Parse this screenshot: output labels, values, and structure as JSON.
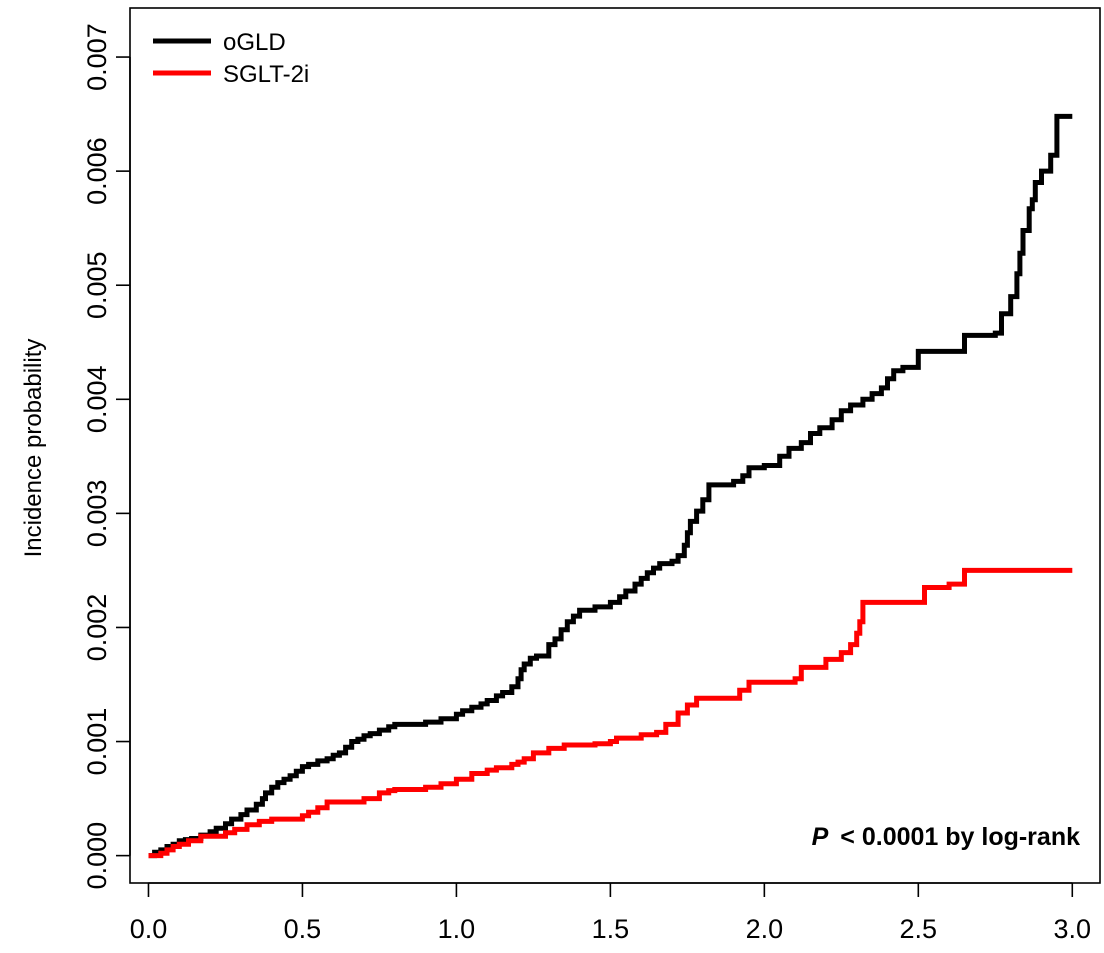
{
  "chart_data": {
    "type": "line",
    "step": true,
    "title": "",
    "xlabel": "",
    "ylabel": "Incidence probability",
    "xlim": [
      -0.06,
      3.09
    ],
    "ylim": [
      -0.00024,
      0.00743
    ],
    "x_ticks": [
      0.0,
      0.5,
      1.0,
      1.5,
      2.0,
      2.5,
      3.0
    ],
    "x_tick_labels": [
      "0.0",
      "0.5",
      "1.0",
      "1.5",
      "2.0",
      "2.5",
      "3.0"
    ],
    "y_ticks": [
      0.0,
      0.001,
      0.002,
      0.003,
      0.004,
      0.005,
      0.006,
      0.007
    ],
    "y_tick_labels": [
      "0.000",
      "0.001",
      "0.002",
      "0.003",
      "0.004",
      "0.005",
      "0.006",
      "0.007"
    ],
    "grid": false,
    "legend_position": "top-left",
    "annotation": {
      "p_symbol": "P",
      "text": "< 0.0001 by log-rank",
      "position": "bottom-right"
    },
    "series": [
      {
        "name": "oGLD",
        "color": "#000000",
        "x": [
          0.0,
          0.02,
          0.04,
          0.06,
          0.08,
          0.1,
          0.12,
          0.14,
          0.17,
          0.2,
          0.22,
          0.25,
          0.27,
          0.3,
          0.32,
          0.35,
          0.37,
          0.38,
          0.4,
          0.42,
          0.44,
          0.46,
          0.48,
          0.5,
          0.52,
          0.55,
          0.58,
          0.6,
          0.62,
          0.64,
          0.66,
          0.68,
          0.7,
          0.72,
          0.75,
          0.78,
          0.8,
          0.85,
          0.9,
          0.95,
          1.0,
          1.02,
          1.05,
          1.08,
          1.1,
          1.13,
          1.15,
          1.18,
          1.2,
          1.21,
          1.22,
          1.24,
          1.26,
          1.3,
          1.32,
          1.34,
          1.36,
          1.38,
          1.4,
          1.45,
          1.5,
          1.53,
          1.55,
          1.58,
          1.6,
          1.62,
          1.64,
          1.66,
          1.7,
          1.72,
          1.74,
          1.75,
          1.76,
          1.78,
          1.8,
          1.82,
          1.84,
          1.9,
          1.93,
          1.95,
          2.0,
          2.05,
          2.08,
          2.12,
          2.15,
          2.18,
          2.22,
          2.25,
          2.28,
          2.32,
          2.35,
          2.38,
          2.4,
          2.42,
          2.45,
          2.5,
          2.6,
          2.65,
          2.75,
          2.77,
          2.8,
          2.82,
          2.83,
          2.84,
          2.86,
          2.87,
          2.88,
          2.9,
          2.93,
          2.95,
          3.0
        ],
        "values": [
          0.0,
          3e-05,
          5e-05,
          8e-05,
          0.0001,
          0.00013,
          0.00014,
          0.00015,
          0.00018,
          0.00021,
          0.00024,
          0.00028,
          0.00032,
          0.00036,
          0.0004,
          0.00045,
          0.0005,
          0.00055,
          0.0006,
          0.00064,
          0.00067,
          0.0007,
          0.00074,
          0.00078,
          0.0008,
          0.00083,
          0.00085,
          0.00088,
          0.0009,
          0.00095,
          0.001,
          0.00102,
          0.00105,
          0.00107,
          0.0011,
          0.00113,
          0.00115,
          0.00115,
          0.00117,
          0.0012,
          0.00124,
          0.00127,
          0.0013,
          0.00133,
          0.00136,
          0.0014,
          0.00143,
          0.00148,
          0.00155,
          0.00163,
          0.00168,
          0.00173,
          0.00175,
          0.00185,
          0.0019,
          0.00198,
          0.00205,
          0.0021,
          0.00215,
          0.00218,
          0.00222,
          0.00227,
          0.00232,
          0.00238,
          0.00243,
          0.00248,
          0.00252,
          0.00256,
          0.00258,
          0.00263,
          0.00272,
          0.00283,
          0.00293,
          0.00302,
          0.00312,
          0.00325,
          0.00325,
          0.00328,
          0.00333,
          0.0034,
          0.00342,
          0.0035,
          0.00357,
          0.00362,
          0.0037,
          0.00375,
          0.00382,
          0.0039,
          0.00395,
          0.004,
          0.00405,
          0.0041,
          0.00418,
          0.00425,
          0.00428,
          0.00442,
          0.00442,
          0.00456,
          0.00458,
          0.00475,
          0.0049,
          0.0051,
          0.00528,
          0.00548,
          0.00567,
          0.00575,
          0.0059,
          0.006,
          0.00614,
          0.00648,
          0.00648
        ]
      },
      {
        "name": "SGLT-2i",
        "color": "#ff0000",
        "x": [
          0.0,
          0.04,
          0.06,
          0.08,
          0.1,
          0.13,
          0.17,
          0.25,
          0.28,
          0.32,
          0.36,
          0.4,
          0.5,
          0.52,
          0.55,
          0.58,
          0.6,
          0.7,
          0.75,
          0.78,
          0.8,
          0.9,
          0.95,
          1.0,
          1.05,
          1.1,
          1.13,
          1.18,
          1.2,
          1.22,
          1.25,
          1.3,
          1.35,
          1.45,
          1.5,
          1.52,
          1.6,
          1.65,
          1.68,
          1.72,
          1.75,
          1.78,
          1.92,
          1.95,
          2.1,
          2.12,
          2.2,
          2.25,
          2.28,
          2.3,
          2.31,
          2.32,
          2.5,
          2.52,
          2.6,
          2.65,
          3.0
        ],
        "values": [
          0.0,
          2e-05,
          5e-05,
          8e-05,
          0.0001,
          0.00013,
          0.00017,
          0.0002,
          0.00023,
          0.00027,
          0.0003,
          0.00032,
          0.00035,
          0.00038,
          0.00042,
          0.00047,
          0.00047,
          0.0005,
          0.00055,
          0.00057,
          0.00058,
          0.0006,
          0.00063,
          0.00067,
          0.00072,
          0.00075,
          0.00077,
          0.0008,
          0.00082,
          0.00085,
          0.0009,
          0.00094,
          0.00097,
          0.00098,
          0.001,
          0.00103,
          0.00106,
          0.00108,
          0.00115,
          0.00125,
          0.00132,
          0.00138,
          0.00145,
          0.00152,
          0.00155,
          0.00165,
          0.00172,
          0.00178,
          0.00185,
          0.00195,
          0.00205,
          0.00222,
          0.00222,
          0.00235,
          0.00238,
          0.0025,
          0.0025
        ]
      }
    ]
  }
}
